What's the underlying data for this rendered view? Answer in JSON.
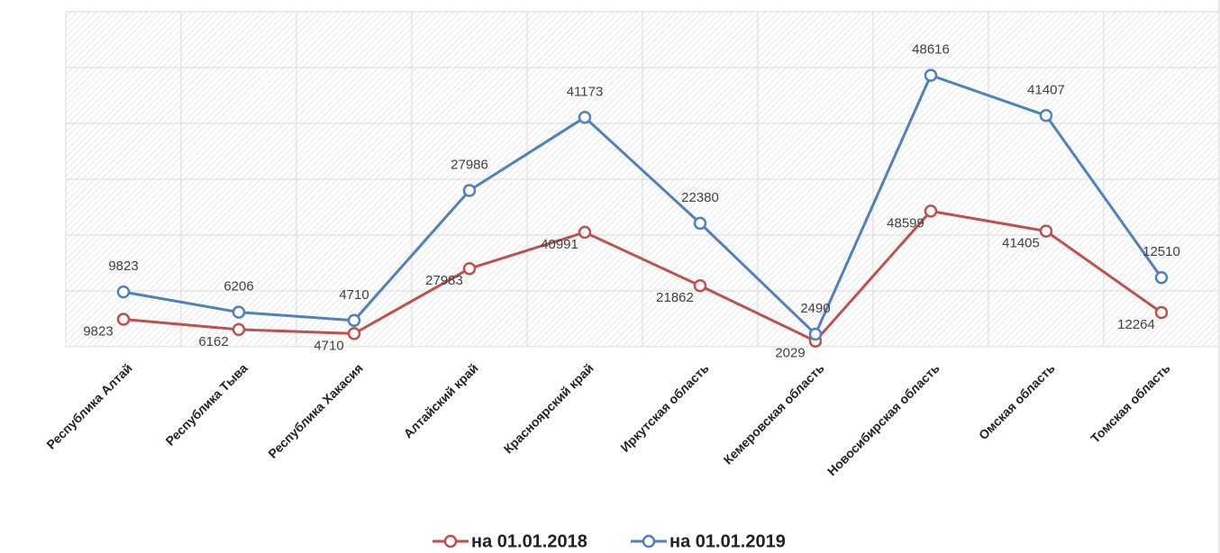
{
  "chart_data": {
    "type": "line",
    "stacked": true,
    "categories": [
      "Республика Алтай",
      "Республика Тыва",
      "Республика Хакасия",
      "Алтайский край",
      "Красноярский край",
      "Иркутская область",
      "Кемеровская область",
      "Новосибирская область",
      "Омская область",
      "Томская область"
    ],
    "series": [
      {
        "name": "на 01.01.2018",
        "color": "#c0504d",
        "values": [
          9823,
          6162,
          4710,
          27983,
          40991,
          21862,
          2029,
          48599,
          41405,
          12264
        ]
      },
      {
        "name": "на 01.01.2019",
        "color": "#4f81bd",
        "values": [
          9823,
          6206,
          4710,
          27986,
          41173,
          22380,
          2490,
          48616,
          41407,
          12510
        ]
      }
    ],
    "ylim": [
      0,
      120000
    ],
    "yticks": [
      0,
      20000,
      40000,
      60000,
      80000,
      100000,
      120000
    ],
    "grid": true,
    "legend": "bottom"
  }
}
